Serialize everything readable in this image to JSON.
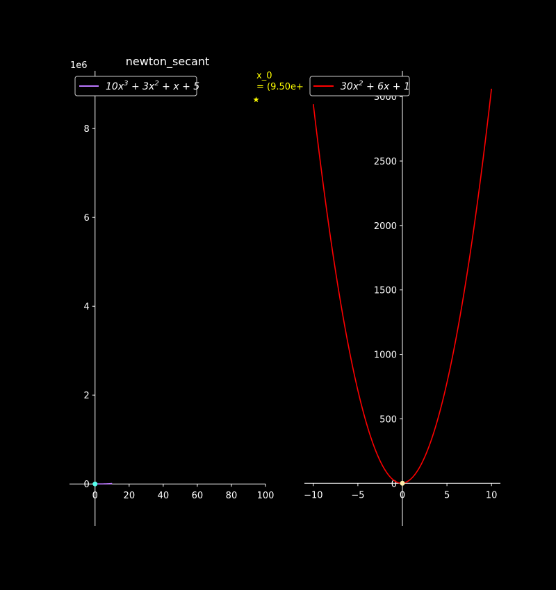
{
  "colors": {
    "background": "#000000",
    "axis": "#ffffff",
    "text": "#ffffff",
    "left_curve": "#bb77ff",
    "right_curve": "#ff0000",
    "left_marker": "#55ffee",
    "right_marker": "#ffeeaa",
    "annotation": "#ffff00"
  },
  "chart_data": [
    {
      "type": "line",
      "title": "newton_secant",
      "offset_label": "1e6",
      "function": "10x^3 + 3x^2 + x + 5",
      "coefficients": [
        10,
        3,
        1,
        5
      ],
      "curve_x_range": [
        0,
        10
      ],
      "x_ticks": [
        0,
        20,
        40,
        60,
        80,
        100
      ],
      "x_tick_labels": [
        "0",
        "20",
        "40",
        "60",
        "80",
        "100"
      ],
      "y_ticks": [
        0,
        2,
        4,
        6,
        8
      ],
      "y_tick_labels": [
        "0",
        "2",
        "4",
        "6",
        "8"
      ],
      "xlim": [
        -15,
        100
      ],
      "ylim": [
        -0.45,
        9.3
      ],
      "legend": {
        "placement": "top-left",
        "prefix": "10",
        "parts": [
          {
            "base": "x",
            "sup": "3"
          },
          {
            "base": " + 3x",
            "sup": "2"
          },
          {
            "base": " + x + 5",
            "sup": ""
          }
        ]
      },
      "marker": {
        "x": 0,
        "y": 0
      },
      "annotation": {
        "x": 94.5,
        "y": 8.65,
        "line1": "x_0",
        "line2": "= (9.50e+"
      }
    },
    {
      "type": "line",
      "function": "30x^2 + 6x + 1",
      "coefficients": [
        30,
        6,
        1
      ],
      "curve_x_range": [
        -10,
        10
      ],
      "x_ticks": [
        -10,
        -5,
        0,
        5,
        10
      ],
      "x_tick_labels": [
        "−10",
        "−5",
        "0",
        "5",
        "10"
      ],
      "y_ticks": [
        0,
        500,
        1000,
        1500,
        2000,
        2500,
        3000
      ],
      "y_tick_labels": [
        "0",
        "500",
        "1000",
        "1500",
        "2000",
        "2500",
        "3000"
      ],
      "xlim": [
        -11,
        11
      ],
      "ylim": [
        -160,
        3200
      ],
      "legend": {
        "placement": "top-left",
        "prefix": "30",
        "parts": [
          {
            "base": "x",
            "sup": "2"
          },
          {
            "base": " + 6x + 1",
            "sup": ""
          }
        ]
      },
      "marker": {
        "x": 0,
        "y": 0
      }
    }
  ]
}
